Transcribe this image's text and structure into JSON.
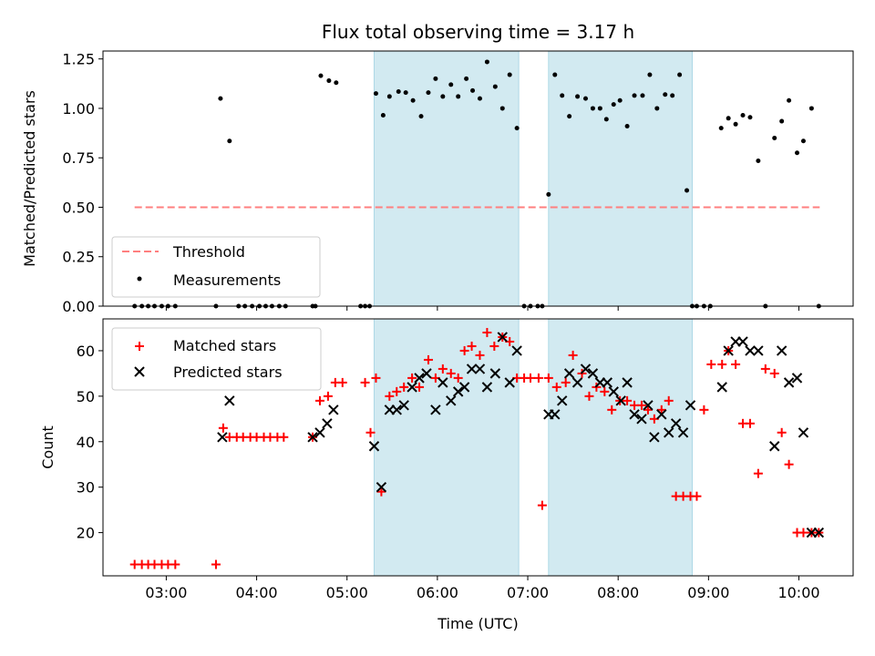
{
  "chart_data": {
    "title": "Flux total observing time = 3.17 h",
    "xlabel": "Time (UTC)",
    "x_unit": "hours UTC",
    "xlim": [
      2.3,
      10.6
    ],
    "xticks": [
      {
        "value": 3,
        "label": "03:00"
      },
      {
        "value": 4,
        "label": "04:00"
      },
      {
        "value": 5,
        "label": "05:00"
      },
      {
        "value": 6,
        "label": "06:00"
      },
      {
        "value": 7,
        "label": "07:00"
      },
      {
        "value": 8,
        "label": "08:00"
      },
      {
        "value": 9,
        "label": "09:00"
      },
      {
        "value": 10,
        "label": "10:00"
      }
    ],
    "shaded_intervals": [
      [
        5.3,
        6.9
      ],
      [
        7.23,
        8.82
      ]
    ],
    "shade_color": "#add8e6",
    "panels": [
      {
        "type": "scatter",
        "ylabel": "Matched/Predicted stars",
        "ylim": [
          0,
          1.29
        ],
        "yticks": [
          {
            "value": 0,
            "label": "0.00"
          },
          {
            "value": 0.25,
            "label": "0.25"
          },
          {
            "value": 0.5,
            "label": "0.50"
          },
          {
            "value": 0.75,
            "label": "0.75"
          },
          {
            "value": 1.0,
            "label": "1.00"
          },
          {
            "value": 1.25,
            "label": "1.25"
          }
        ],
        "threshold": {
          "name": "Threshold",
          "value": 0.5,
          "x_range": [
            2.65,
            10.23
          ],
          "color": "#ff7f7f"
        },
        "series": [
          {
            "name": "Measurements",
            "marker": "dot",
            "color": "#000000",
            "x": [
              2.65,
              2.73,
              2.8,
              2.87,
              2.95,
              3.02,
              3.1,
              3.55,
              3.6,
              3.7,
              3.8,
              3.87,
              3.95,
              4.03,
              4.1,
              4.17,
              4.25,
              4.32,
              4.62,
              4.65,
              4.71,
              4.8,
              4.88,
              5.15,
              5.2,
              5.25,
              5.32,
              5.4,
              5.47,
              5.57,
              5.65,
              5.73,
              5.82,
              5.9,
              5.98,
              6.06,
              6.15,
              6.23,
              6.32,
              6.39,
              6.47,
              6.55,
              6.64,
              6.72,
              6.8,
              6.88,
              6.96,
              7.03,
              7.11,
              7.16,
              7.23,
              7.3,
              7.38,
              7.46,
              7.55,
              7.64,
              7.72,
              7.8,
              7.87,
              7.95,
              8.02,
              8.1,
              8.18,
              8.27,
              8.35,
              8.43,
              8.52,
              8.6,
              8.68,
              8.76,
              8.82,
              8.87,
              8.95,
              9.02,
              9.14,
              9.22,
              9.3,
              9.38,
              9.46,
              9.55,
              9.63,
              9.73,
              9.81,
              9.89,
              9.98,
              10.05,
              10.14,
              10.22
            ],
            "y": [
              0,
              0,
              0,
              0,
              0,
              0,
              0,
              0,
              1.05,
              0.835,
              0,
              0,
              0,
              0,
              0,
              0,
              0,
              0,
              0,
              0,
              1.165,
              1.14,
              1.13,
              0,
              0,
              0,
              1.075,
              0.965,
              1.06,
              1.085,
              1.08,
              1.04,
              0.96,
              1.08,
              1.15,
              1.06,
              1.12,
              1.06,
              1.15,
              1.09,
              1.05,
              1.235,
              1.11,
              1.0,
              1.17,
              0.9,
              0,
              0,
              0,
              0,
              0.565,
              1.17,
              1.065,
              0.96,
              1.06,
              1.05,
              1.0,
              1.0,
              0.945,
              1.02,
              1.04,
              0.91,
              1.065,
              1.065,
              1.17,
              1.0,
              1.07,
              1.065,
              1.17,
              0.585,
              0,
              0,
              0,
              0,
              0.9,
              0.95,
              0.92,
              0.965,
              0.955,
              0.735,
              0,
              0.85,
              0.935,
              1.04,
              0.775,
              0.835,
              1.0,
              0
            ]
          }
        ],
        "legend_position": "lower left"
      },
      {
        "type": "scatter",
        "ylabel": "Count",
        "ylim": [
          10.5,
          67
        ],
        "yticks": [
          {
            "value": 20,
            "label": "20"
          },
          {
            "value": 30,
            "label": "30"
          },
          {
            "value": 40,
            "label": "40"
          },
          {
            "value": 50,
            "label": "50"
          },
          {
            "value": 60,
            "label": "60"
          }
        ],
        "series": [
          {
            "name": "Matched stars",
            "marker": "plus",
            "color": "#ff0000",
            "x": [
              2.65,
              2.73,
              2.8,
              2.87,
              2.95,
              3.02,
              3.1,
              3.55,
              3.63,
              3.7,
              3.78,
              3.85,
              3.93,
              4.0,
              4.08,
              4.15,
              4.23,
              4.3,
              4.62,
              4.7,
              4.79,
              4.87,
              4.95,
              5.2,
              5.26,
              5.32,
              5.38,
              5.47,
              5.55,
              5.63,
              5.72,
              5.8,
              5.9,
              5.98,
              6.06,
              6.15,
              6.23,
              6.3,
              6.38,
              6.47,
              6.55,
              6.63,
              6.72,
              6.8,
              6.88,
              6.96,
              7.03,
              7.12,
              7.16,
              7.23,
              7.32,
              7.42,
              7.5,
              7.6,
              7.68,
              7.76,
              7.85,
              7.93,
              8.02,
              8.1,
              8.18,
              8.26,
              8.33,
              8.4,
              8.48,
              8.56,
              8.64,
              8.72,
              8.8,
              8.87,
              8.95,
              9.03,
              9.15,
              9.22,
              9.3,
              9.38,
              9.46,
              9.55,
              9.63,
              9.73,
              9.81,
              9.89,
              9.98,
              10.05,
              10.14,
              10.22
            ],
            "y": [
              13,
              13,
              13,
              13,
              13,
              13,
              13,
              13,
              43,
              41,
              41,
              41,
              41,
              41,
              41,
              41,
              41,
              41,
              41,
              49,
              50,
              53,
              53,
              53,
              42,
              54,
              29,
              50,
              51,
              52,
              54,
              52,
              58,
              54,
              56,
              55,
              54,
              60,
              61,
              59,
              64,
              61,
              63,
              62,
              54,
              54,
              54,
              54,
              26,
              54,
              52,
              53,
              59,
              55,
              50,
              52,
              51,
              47,
              49,
              49,
              48,
              48,
              47,
              45,
              47,
              49,
              28,
              28,
              28,
              28,
              47,
              57,
              57,
              60,
              57,
              44,
              44,
              33,
              56,
              55,
              42,
              35,
              20,
              20,
              20,
              20
            ]
          },
          {
            "name": "Predicted stars",
            "marker": "x",
            "color": "#000000",
            "x": [
              3.62,
              3.7,
              4.62,
              4.7,
              4.78,
              4.85,
              5.3,
              5.38,
              5.47,
              5.55,
              5.63,
              5.72,
              5.8,
              5.88,
              5.98,
              6.06,
              6.15,
              6.23,
              6.3,
              6.38,
              6.47,
              6.55,
              6.64,
              6.72,
              6.8,
              6.88,
              7.23,
              7.3,
              7.38,
              7.46,
              7.55,
              7.64,
              7.72,
              7.8,
              7.88,
              7.95,
              8.03,
              8.1,
              8.18,
              8.26,
              8.33,
              8.4,
              8.48,
              8.56,
              8.64,
              8.72,
              8.8,
              9.15,
              9.22,
              9.3,
              9.38,
              9.46,
              9.55,
              9.73,
              9.81,
              9.89,
              9.98,
              10.05,
              10.14,
              10.22
            ],
            "y": [
              41,
              49,
              41,
              42,
              44,
              47,
              39,
              30,
              47,
              47,
              48,
              52,
              54,
              55,
              47,
              53,
              49,
              51,
              52,
              56,
              56,
              52,
              55,
              63,
              53,
              60,
              46,
              46,
              49,
              55,
              53,
              56,
              55,
              53,
              53,
              51,
              49,
              53,
              46,
              45,
              48,
              41,
              46,
              42,
              44,
              42,
              48,
              52,
              60,
              62,
              62,
              60,
              60,
              39,
              60,
              53,
              54,
              42,
              20,
              20
            ]
          }
        ],
        "legend_position": "upper left"
      }
    ]
  }
}
